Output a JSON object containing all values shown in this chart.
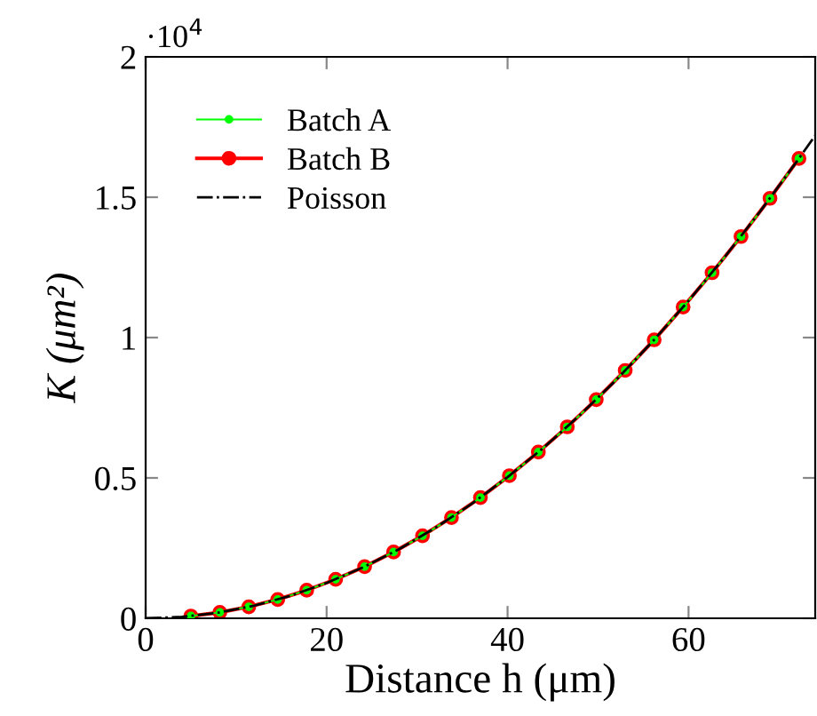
{
  "chart_data": {
    "type": "line",
    "xlabel": "Distance h (μm)",
    "ylabel": "K (μm²)",
    "annotations": [
      "·10$^{4}$"
    ],
    "xlim": [
      0,
      74
    ],
    "xticks": [
      0,
      20,
      40,
      60
    ],
    "ylim": [
      0,
      2
    ],
    "yticks": [
      0,
      0.5,
      1,
      1.5,
      2
    ],
    "grid": false,
    "legend": "top left",
    "series": [
      {
        "name": "Batch A",
        "color": "#00ff00",
        "marker": "circle",
        "line_style": "solid",
        "x": [
          5,
          8.2,
          11.4,
          14.6,
          17.8,
          21,
          24.2,
          27.4,
          30.6,
          33.8,
          37,
          40.2,
          43.4,
          46.6,
          49.8,
          53,
          56.2,
          59.4,
          62.6,
          65.8,
          69,
          72.2
        ],
        "values": [
          0.008,
          0.021,
          0.041,
          0.067,
          0.1,
          0.139,
          0.184,
          0.236,
          0.294,
          0.359,
          0.43,
          0.508,
          0.592,
          0.682,
          0.779,
          0.883,
          0.992,
          1.109,
          1.231,
          1.36,
          1.496,
          1.638
        ]
      },
      {
        "name": "Batch B",
        "color": "#ff0000",
        "marker": "circle",
        "line_style": "solid",
        "x": [
          5,
          8.2,
          11.4,
          14.6,
          17.8,
          21,
          24.2,
          27.4,
          30.6,
          33.8,
          37,
          40.2,
          43.4,
          46.6,
          49.8,
          53,
          56.2,
          59.4,
          62.6,
          65.8,
          69,
          72.2
        ],
        "values": [
          0.008,
          0.021,
          0.041,
          0.067,
          0.1,
          0.139,
          0.184,
          0.236,
          0.294,
          0.359,
          0.43,
          0.508,
          0.592,
          0.682,
          0.779,
          0.883,
          0.992,
          1.109,
          1.231,
          1.36,
          1.496,
          1.638
        ]
      },
      {
        "name": "Poisson",
        "color": "#000000",
        "marker": "none",
        "line_style": "dashdot",
        "x": [
          0,
          4,
          8,
          12,
          16,
          20,
          24,
          28,
          32,
          36,
          40,
          44,
          48,
          52,
          56,
          60,
          64,
          68,
          72,
          74
        ],
        "values": [
          0,
          0.005,
          0.02,
          0.045,
          0.08,
          0.126,
          0.181,
          0.246,
          0.322,
          0.407,
          0.503,
          0.608,
          0.724,
          0.849,
          0.985,
          1.131,
          1.287,
          1.453,
          1.629,
          1.72
        ]
      }
    ]
  }
}
